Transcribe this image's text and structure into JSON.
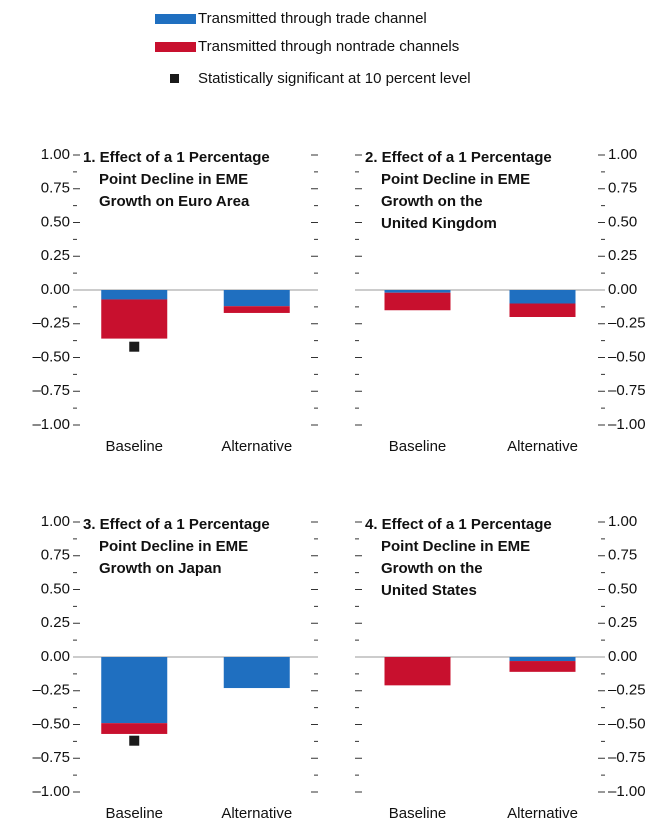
{
  "legend": {
    "items": [
      {
        "name": "Transmitted through trade channel",
        "color": "#1f6fc0",
        "marker": "bar"
      },
      {
        "name": "Transmitted through nontrade channels",
        "color": "#c8102e",
        "marker": "bar"
      },
      {
        "name": "Statistically significant at 10 percent level",
        "color": "#1a1a1a",
        "marker": "square"
      }
    ]
  },
  "chart_data": [
    {
      "type": "bar",
      "title": [
        "1. Effect of a 1 Percentage",
        "Point Decline in EME",
        "Growth on Euro Area"
      ],
      "categories": [
        "Baseline",
        "Alternative"
      ],
      "yaxis_side": "left",
      "series": [
        {
          "values": [
            -0.07,
            -0.12
          ]
        },
        {
          "values": [
            -0.29,
            -0.05
          ]
        },
        {
          "values": [
            -0.42,
            null
          ]
        }
      ],
      "ylim": [
        -1,
        1
      ],
      "yticks": [
        {
          "value": 1,
          "label": "1.00"
        },
        {
          "value": 0.75,
          "label": "0.75"
        },
        {
          "value": 0.5,
          "label": "0.50"
        },
        {
          "value": 0.25,
          "label": "0.25"
        },
        {
          "value": 0,
          "label": "0.00"
        },
        {
          "value": -0.25,
          "label": "–0.25"
        },
        {
          "value": -0.5,
          "label": "–0.50"
        },
        {
          "value": -0.75,
          "label": "–0.75"
        },
        {
          "value": -1,
          "label": "–1.00"
        }
      ]
    },
    {
      "type": "bar",
      "title": [
        "2. Effect of a 1 Percentage",
        "Point Decline in EME",
        "Growth on the",
        "United Kingdom"
      ],
      "categories": [
        "Baseline",
        "Alternative"
      ],
      "yaxis_side": "right",
      "series": [
        {
          "values": [
            -0.02,
            -0.1
          ]
        },
        {
          "values": [
            -0.13,
            -0.1
          ]
        },
        {
          "values": [
            null,
            null
          ]
        }
      ],
      "ylim": [
        -1,
        1
      ],
      "yticks": [
        {
          "value": 1,
          "label": "1.00"
        },
        {
          "value": 0.75,
          "label": "0.75"
        },
        {
          "value": 0.5,
          "label": "0.50"
        },
        {
          "value": 0.25,
          "label": "0.25"
        },
        {
          "value": 0,
          "label": "0.00"
        },
        {
          "value": -0.25,
          "label": "–0.25"
        },
        {
          "value": -0.5,
          "label": "–0.50"
        },
        {
          "value": -0.75,
          "label": "–0.75"
        },
        {
          "value": -1,
          "label": "–1.00"
        }
      ]
    },
    {
      "type": "bar",
      "title": [
        "3. Effect of a 1 Percentage",
        "Point Decline in EME",
        "Growth on Japan"
      ],
      "categories": [
        "Baseline",
        "Alternative"
      ],
      "yaxis_side": "left",
      "series": [
        {
          "values": [
            -0.49,
            -0.23
          ]
        },
        {
          "values": [
            -0.08,
            0
          ]
        },
        {
          "values": [
            -0.62,
            null
          ]
        }
      ],
      "ylim": [
        -1,
        1
      ],
      "yticks": [
        {
          "value": 1,
          "label": "1.00"
        },
        {
          "value": 0.75,
          "label": "0.75"
        },
        {
          "value": 0.5,
          "label": "0.50"
        },
        {
          "value": 0.25,
          "label": "0.25"
        },
        {
          "value": 0,
          "label": "0.00"
        },
        {
          "value": -0.25,
          "label": "–0.25"
        },
        {
          "value": -0.5,
          "label": "–0.50"
        },
        {
          "value": -0.75,
          "label": "–0.75"
        },
        {
          "value": -1,
          "label": "–1.00"
        }
      ]
    },
    {
      "type": "bar",
      "title": [
        "4. Effect of a 1 Percentage",
        "Point Decline in EME",
        "Growth on the",
        "United States"
      ],
      "categories": [
        "Baseline",
        "Alternative"
      ],
      "yaxis_side": "right",
      "series": [
        {
          "values": [
            0,
            -0.03
          ]
        },
        {
          "values": [
            -0.21,
            -0.08
          ]
        },
        {
          "values": [
            null,
            null
          ]
        }
      ],
      "ylim": [
        -1,
        1
      ],
      "yticks": [
        {
          "value": 1,
          "label": "1.00"
        },
        {
          "value": 0.75,
          "label": "0.75"
        },
        {
          "value": 0.5,
          "label": "0.50"
        },
        {
          "value": 0.25,
          "label": "0.25"
        },
        {
          "value": 0,
          "label": "0.00"
        },
        {
          "value": -0.25,
          "label": "–0.25"
        },
        {
          "value": -0.5,
          "label": "–0.50"
        },
        {
          "value": -0.75,
          "label": "–0.75"
        },
        {
          "value": -1,
          "label": "–1.00"
        }
      ]
    }
  ]
}
